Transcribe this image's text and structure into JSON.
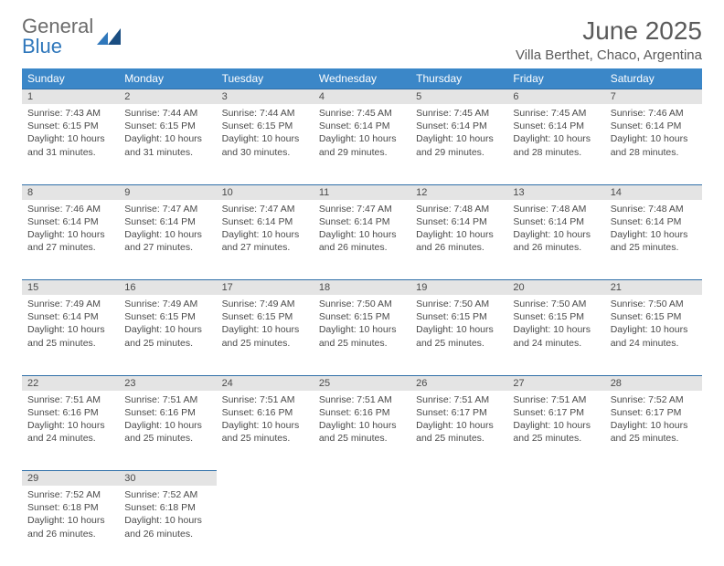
{
  "logo": {
    "text1": "General",
    "text2": "Blue"
  },
  "title": "June 2025",
  "location": "Villa Berthet, Chaco, Argentina",
  "colors": {
    "header_bg": "#3b87c8",
    "header_text": "#ffffff",
    "daynum_bg": "#e4e4e4",
    "row_border": "#2f6fa8",
    "logo_gray": "#6b6b6b",
    "logo_blue": "#2f77bb",
    "text": "#4a4a4a",
    "background": "#ffffff"
  },
  "weekdays": [
    "Sunday",
    "Monday",
    "Tuesday",
    "Wednesday",
    "Thursday",
    "Friday",
    "Saturday"
  ],
  "weeks": [
    [
      {
        "n": "1",
        "sr": "7:43 AM",
        "ss": "6:15 PM",
        "dl": "10 hours and 31 minutes."
      },
      {
        "n": "2",
        "sr": "7:44 AM",
        "ss": "6:15 PM",
        "dl": "10 hours and 31 minutes."
      },
      {
        "n": "3",
        "sr": "7:44 AM",
        "ss": "6:15 PM",
        "dl": "10 hours and 30 minutes."
      },
      {
        "n": "4",
        "sr": "7:45 AM",
        "ss": "6:14 PM",
        "dl": "10 hours and 29 minutes."
      },
      {
        "n": "5",
        "sr": "7:45 AM",
        "ss": "6:14 PM",
        "dl": "10 hours and 29 minutes."
      },
      {
        "n": "6",
        "sr": "7:45 AM",
        "ss": "6:14 PM",
        "dl": "10 hours and 28 minutes."
      },
      {
        "n": "7",
        "sr": "7:46 AM",
        "ss": "6:14 PM",
        "dl": "10 hours and 28 minutes."
      }
    ],
    [
      {
        "n": "8",
        "sr": "7:46 AM",
        "ss": "6:14 PM",
        "dl": "10 hours and 27 minutes."
      },
      {
        "n": "9",
        "sr": "7:47 AM",
        "ss": "6:14 PM",
        "dl": "10 hours and 27 minutes."
      },
      {
        "n": "10",
        "sr": "7:47 AM",
        "ss": "6:14 PM",
        "dl": "10 hours and 27 minutes."
      },
      {
        "n": "11",
        "sr": "7:47 AM",
        "ss": "6:14 PM",
        "dl": "10 hours and 26 minutes."
      },
      {
        "n": "12",
        "sr": "7:48 AM",
        "ss": "6:14 PM",
        "dl": "10 hours and 26 minutes."
      },
      {
        "n": "13",
        "sr": "7:48 AM",
        "ss": "6:14 PM",
        "dl": "10 hours and 26 minutes."
      },
      {
        "n": "14",
        "sr": "7:48 AM",
        "ss": "6:14 PM",
        "dl": "10 hours and 25 minutes."
      }
    ],
    [
      {
        "n": "15",
        "sr": "7:49 AM",
        "ss": "6:14 PM",
        "dl": "10 hours and 25 minutes."
      },
      {
        "n": "16",
        "sr": "7:49 AM",
        "ss": "6:15 PM",
        "dl": "10 hours and 25 minutes."
      },
      {
        "n": "17",
        "sr": "7:49 AM",
        "ss": "6:15 PM",
        "dl": "10 hours and 25 minutes."
      },
      {
        "n": "18",
        "sr": "7:50 AM",
        "ss": "6:15 PM",
        "dl": "10 hours and 25 minutes."
      },
      {
        "n": "19",
        "sr": "7:50 AM",
        "ss": "6:15 PM",
        "dl": "10 hours and 25 minutes."
      },
      {
        "n": "20",
        "sr": "7:50 AM",
        "ss": "6:15 PM",
        "dl": "10 hours and 24 minutes."
      },
      {
        "n": "21",
        "sr": "7:50 AM",
        "ss": "6:15 PM",
        "dl": "10 hours and 24 minutes."
      }
    ],
    [
      {
        "n": "22",
        "sr": "7:51 AM",
        "ss": "6:16 PM",
        "dl": "10 hours and 24 minutes."
      },
      {
        "n": "23",
        "sr": "7:51 AM",
        "ss": "6:16 PM",
        "dl": "10 hours and 25 minutes."
      },
      {
        "n": "24",
        "sr": "7:51 AM",
        "ss": "6:16 PM",
        "dl": "10 hours and 25 minutes."
      },
      {
        "n": "25",
        "sr": "7:51 AM",
        "ss": "6:16 PM",
        "dl": "10 hours and 25 minutes."
      },
      {
        "n": "26",
        "sr": "7:51 AM",
        "ss": "6:17 PM",
        "dl": "10 hours and 25 minutes."
      },
      {
        "n": "27",
        "sr": "7:51 AM",
        "ss": "6:17 PM",
        "dl": "10 hours and 25 minutes."
      },
      {
        "n": "28",
        "sr": "7:52 AM",
        "ss": "6:17 PM",
        "dl": "10 hours and 25 minutes."
      }
    ],
    [
      {
        "n": "29",
        "sr": "7:52 AM",
        "ss": "6:18 PM",
        "dl": "10 hours and 26 minutes."
      },
      {
        "n": "30",
        "sr": "7:52 AM",
        "ss": "6:18 PM",
        "dl": "10 hours and 26 minutes."
      },
      null,
      null,
      null,
      null,
      null
    ]
  ],
  "labels": {
    "sunrise": "Sunrise:",
    "sunset": "Sunset:",
    "daylight": "Daylight:"
  }
}
